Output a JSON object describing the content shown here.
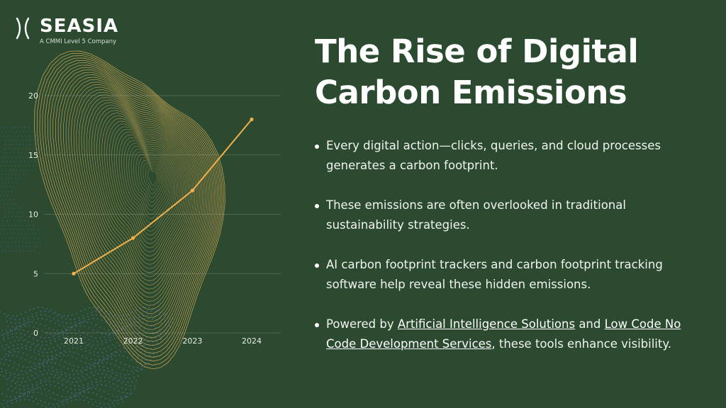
{
  "brand": {
    "name": "SEASIA",
    "tagline": "A CMMI Level 5 Company"
  },
  "title": {
    "line1": "The Rise of Digital",
    "line2": "Carbon Emissions"
  },
  "bullets": [
    {
      "text": "Every digital action—clicks, queries, and cloud processes generates a carbon footprint."
    },
    {
      "text": "These emissions are often overlooked in traditional sustainability strategies."
    },
    {
      "text": "AI carbon footprint trackers and carbon footprint tracking software help reveal these hidden emissions."
    },
    {
      "prefix": "Powered by ",
      "link1": "Artificial Intelligence Solutions",
      "middle": " and ",
      "link2": "Low Code No Code Development Services",
      "suffix": ", these tools enhance visibility."
    }
  ],
  "colors": {
    "background": "#2b4a30",
    "line": "#f2b04a",
    "contours": "#e8b55a",
    "dots": "#6f7fd6"
  },
  "icons": [
    "seasia-logo-icon",
    "bullet-dot-icon"
  ],
  "chart_data": {
    "type": "line",
    "categories": [
      "2021",
      "2022",
      "2023",
      "2024"
    ],
    "values": [
      5,
      8,
      12,
      18
    ],
    "yticks": [
      "0",
      "5",
      "10",
      "15",
      "20"
    ],
    "ylim": [
      0,
      20
    ],
    "grid": true,
    "title": "",
    "xlabel": "",
    "ylabel": ""
  }
}
